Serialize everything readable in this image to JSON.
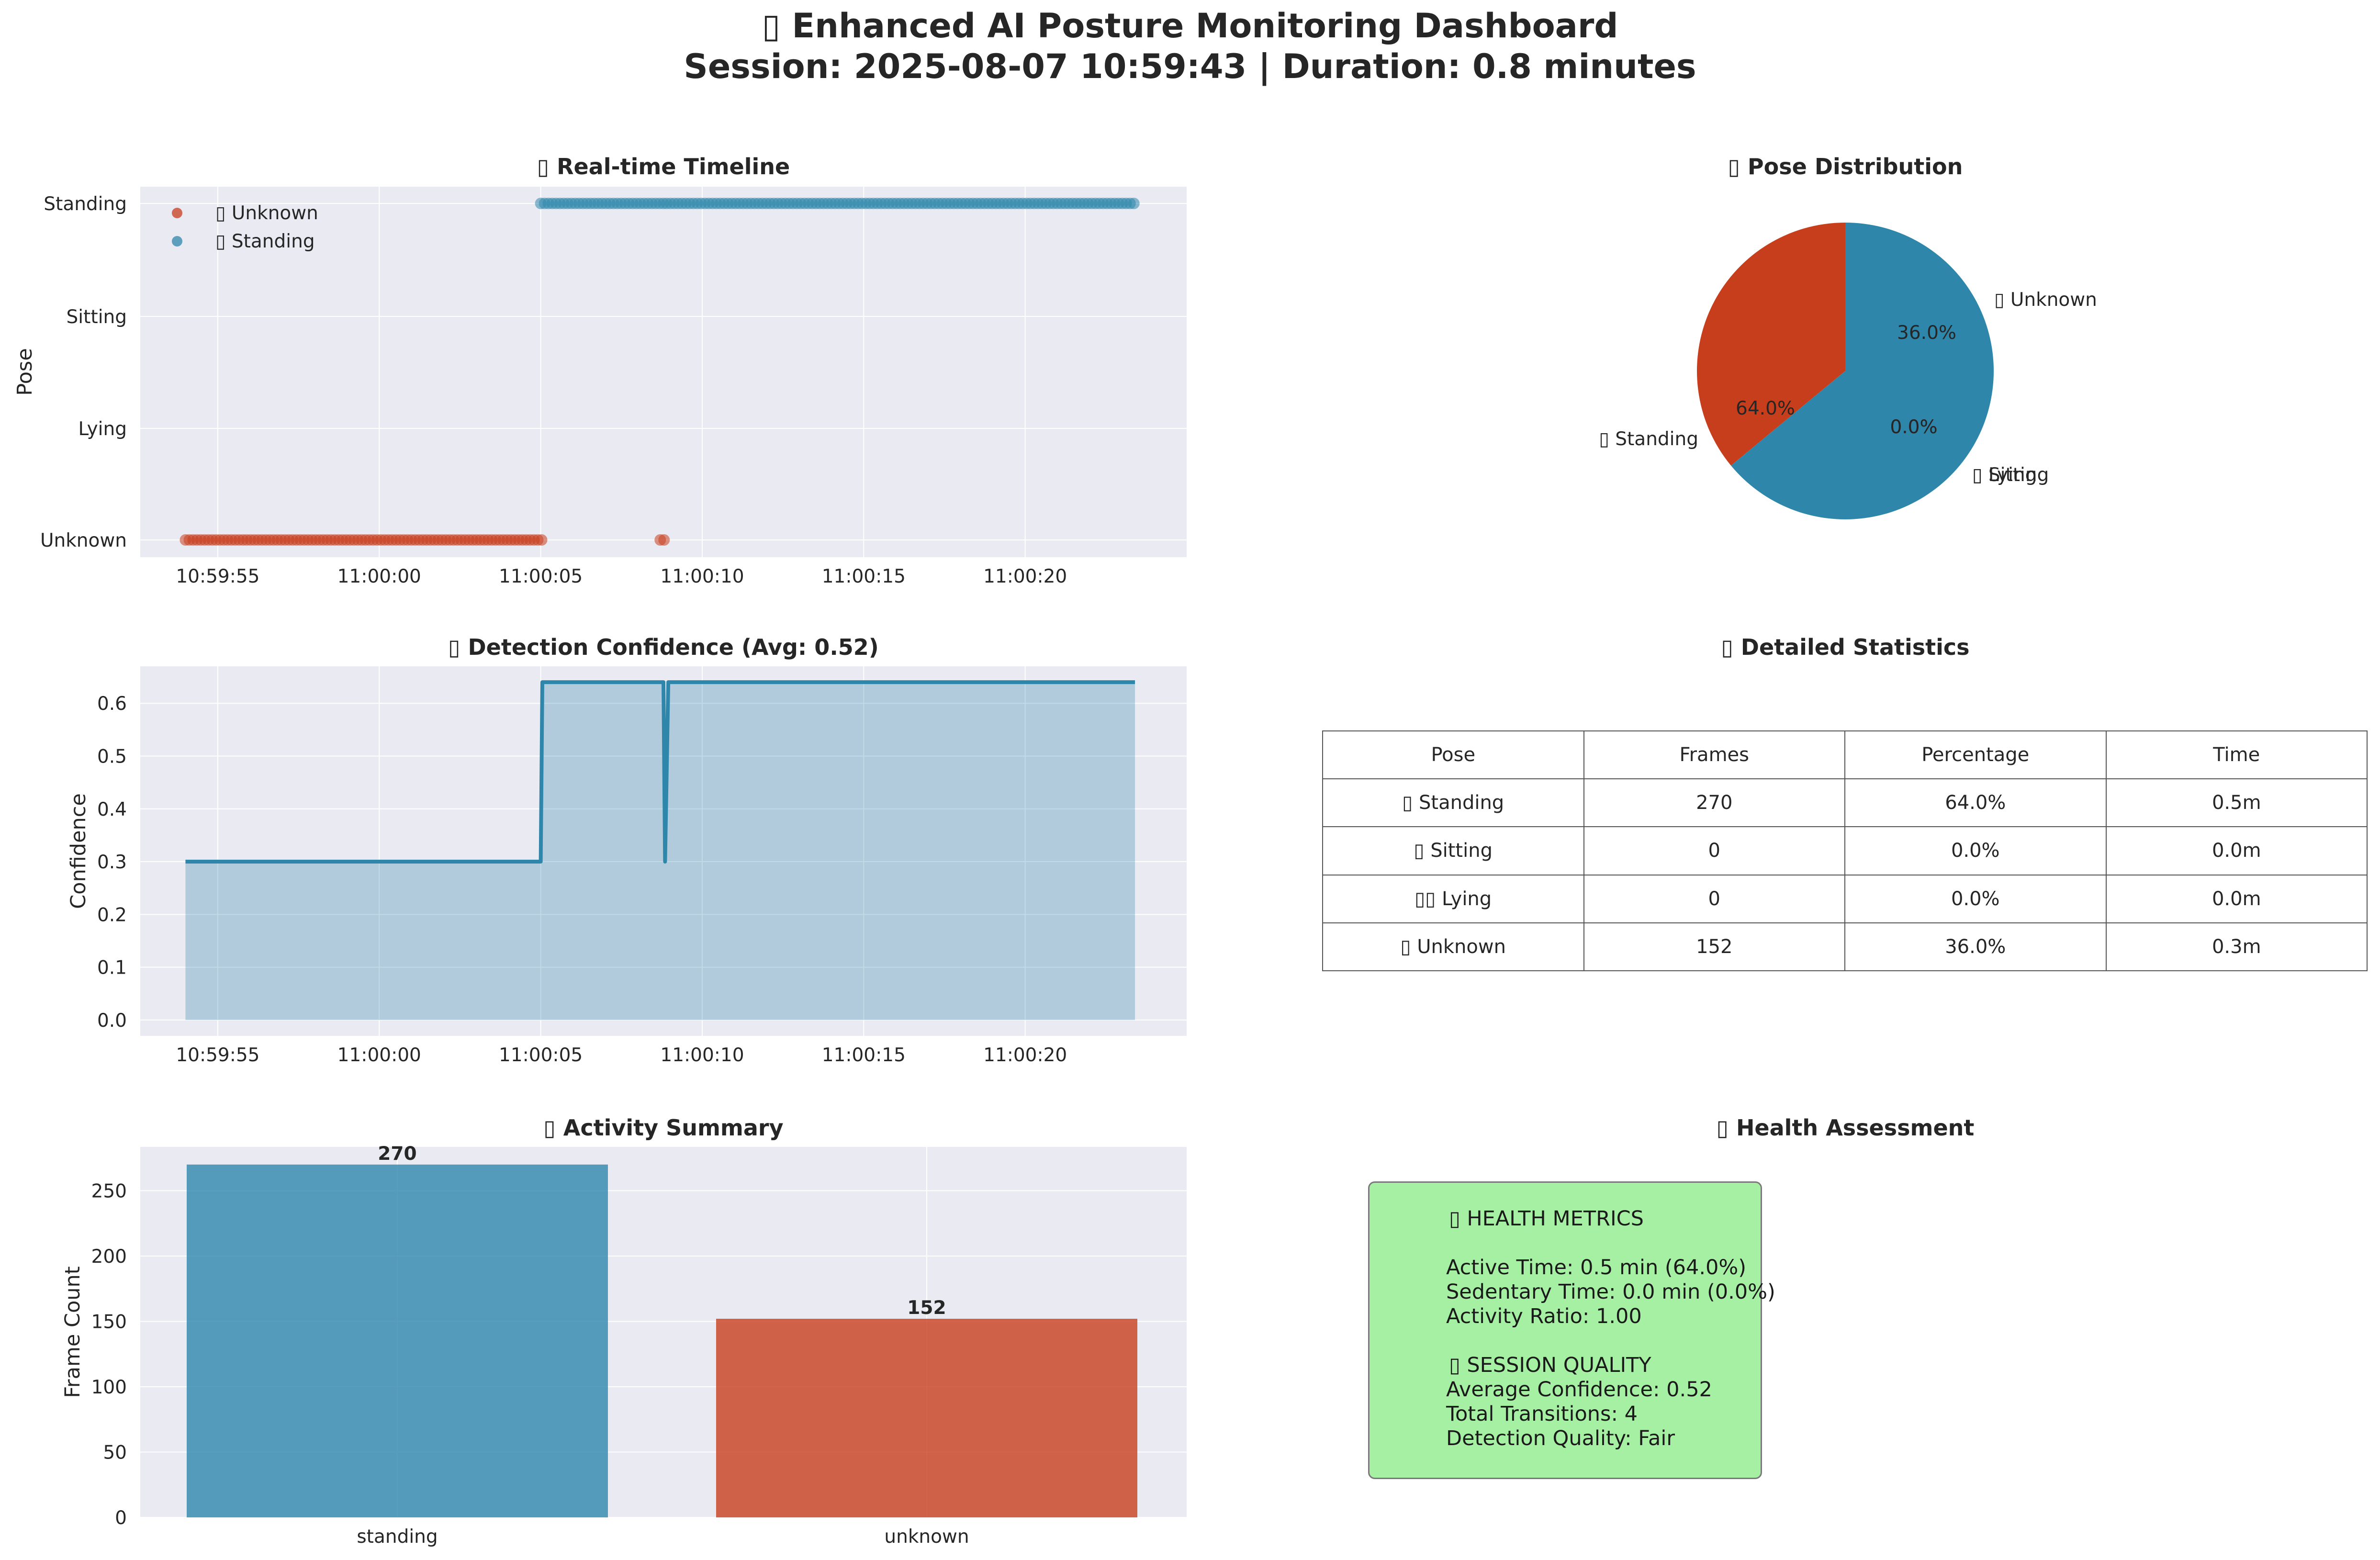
{
  "title_line1": "▯ Enhanced AI Posture Monitoring Dashboard",
  "title_line2": "Session: 2025-08-07 10:59:43 | Duration: 0.8 minutes",
  "colors": {
    "standing": "#2e86ab",
    "unknown": "#c73e1d",
    "panel_bg": "#eaeaf2",
    "health_bg": "#a6f0a3"
  },
  "timeline": {
    "title": "▯ Real-time Timeline",
    "ylabel": "Pose",
    "y_categories": [
      "Unknown",
      "Lying",
      "Sitting",
      "Standing"
    ],
    "x_ticks": [
      "10:59:55",
      "11:00:00",
      "11:00:05",
      "11:00:10",
      "11:00:15",
      "11:00:20"
    ],
    "legend": [
      {
        "label": "▯ Unknown",
        "color": "#c73e1d"
      },
      {
        "label": "▯ Standing",
        "color": "#2e86ab"
      }
    ]
  },
  "chart_data": [
    {
      "type": "scatter",
      "title": "▯ Real-time Timeline",
      "xlabel": "",
      "ylabel": "Pose",
      "x_unit": "time (HH:MM:SS)",
      "x_range": [
        "10:59:52.6",
        "11:00:25.0"
      ],
      "y_categories": [
        "Unknown",
        "Lying",
        "Sitting",
        "Standing"
      ],
      "series": [
        {
          "name": "▯ Unknown",
          "segments": [
            [
              "10:59:54.0",
              "11:00:05.1"
            ],
            [
              "11:00:08.7",
              "11:00:08.9"
            ]
          ],
          "y": "Unknown"
        },
        {
          "name": "▯ Standing",
          "segments": [
            [
              "11:00:05.0",
              "11:00:08.8"
            ],
            [
              "11:00:08.9",
              "11:00:23.4"
            ]
          ],
          "y": "Standing"
        }
      ],
      "legend_position": "top-left",
      "grid": true
    },
    {
      "type": "pie",
      "title": "▯ Pose Distribution",
      "labels": [
        "▯ Unknown",
        "▯ Sitting",
        "▯ Lying",
        "▯ Standing"
      ],
      "values": [
        36.0,
        0.0,
        0.0,
        64.0
      ],
      "pct_labels": [
        "36.0%",
        "0.0%",
        "0.0%",
        "64.0%"
      ],
      "colors": [
        "#c73e1d",
        "#f18f01",
        "#a23b72",
        "#2e86ab"
      ]
    },
    {
      "type": "area",
      "title": "▯ Detection Confidence (Avg: 0.52)",
      "xlabel": "",
      "ylabel": "Confidence",
      "x_range": [
        "10:59:52.6",
        "11:00:25.0"
      ],
      "ylim": [
        -0.03,
        0.67
      ],
      "points": [
        [
          "10:59:54.0",
          0.3
        ],
        [
          "11:00:05.0",
          0.3
        ],
        [
          "11:00:05.05",
          0.64
        ],
        [
          "11:00:08.8",
          0.64
        ],
        [
          "11:00:08.85",
          0.3
        ],
        [
          "11:00:08.95",
          0.64
        ],
        [
          "11:00:23.4",
          0.64
        ]
      ],
      "grid": true
    },
    {
      "type": "table",
      "title": "▯ Detailed Statistics",
      "columns": [
        "Pose",
        "Frames",
        "Percentage",
        "Time"
      ],
      "rows": [
        [
          "▯ Standing",
          "270",
          "64.0%",
          "0.5m"
        ],
        [
          "▯ Sitting",
          "0",
          "0.0%",
          "0.0m"
        ],
        [
          "▯▯ Lying",
          "0",
          "0.0%",
          "0.0m"
        ],
        [
          "▯ Unknown",
          "152",
          "36.0%",
          "0.3m"
        ]
      ]
    },
    {
      "type": "bar",
      "title": "▯ Activity Summary",
      "xlabel": "",
      "ylabel": "Frame Count",
      "categories": [
        "standing",
        "unknown"
      ],
      "values": [
        270,
        152
      ],
      "ylim": [
        0,
        283.5
      ],
      "colors": [
        "#2e86ab",
        "#c73e1d"
      ],
      "grid": true
    }
  ],
  "pie": {
    "title": "▯ Pose Distribution",
    "labels": [
      "▯ Unknown",
      "▯ Sitting",
      "▯ Lying",
      "▯ Standing"
    ],
    "pct": [
      "36.0%",
      "0.0%",
      "0.0%",
      "64.0%"
    ]
  },
  "confidence": {
    "title": "▯ Detection Confidence (Avg: 0.52)",
    "ylabel": "Confidence",
    "y_ticks": [
      "0.0",
      "0.1",
      "0.2",
      "0.3",
      "0.4",
      "0.5",
      "0.6"
    ],
    "x_ticks": [
      "10:59:55",
      "11:00:00",
      "11:00:05",
      "11:00:10",
      "11:00:15",
      "11:00:20"
    ]
  },
  "stats": {
    "title": "▯ Detailed Statistics",
    "columns": [
      "Pose",
      "Frames",
      "Percentage",
      "Time"
    ],
    "rows": [
      [
        "▯ Standing",
        "270",
        "64.0%",
        "0.5m"
      ],
      [
        "▯ Sitting",
        "0",
        "0.0%",
        "0.0m"
      ],
      [
        "▯▯ Lying",
        "0",
        "0.0%",
        "0.0m"
      ],
      [
        "▯ Unknown",
        "152",
        "36.0%",
        "0.3m"
      ]
    ]
  },
  "activity": {
    "title": "▯ Activity Summary",
    "ylabel": "Frame Count",
    "y_ticks": [
      "0",
      "50",
      "100",
      "150",
      "200",
      "250"
    ],
    "categories": [
      "standing",
      "unknown"
    ],
    "value_labels": [
      "270",
      "152"
    ]
  },
  "health": {
    "title": "▯ Health Assessment",
    "metrics_header": "▯ HEALTH METRICS",
    "active": "Active Time: 0.5 min (64.0%)",
    "sedentary": "Sedentary Time: 0.0 min (0.0%)",
    "ratio": "Activity Ratio: 1.00",
    "quality_header": "▯ SESSION QUALITY",
    "avg_conf": "Average Confidence: 0.52",
    "transitions": "Total Transitions: 4",
    "quality": "Detection Quality: Fair"
  }
}
